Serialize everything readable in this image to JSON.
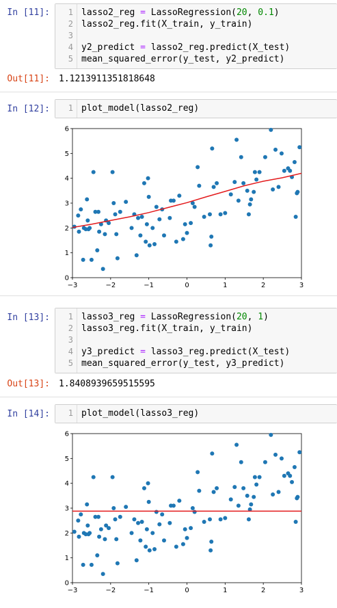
{
  "cells": [
    {
      "in_prompt": "In  [11]:",
      "lines": [
        [
          [
            "lasso2_reg "
          ],
          [
            "=",
            "op"
          ],
          [
            " LassoRegression("
          ],
          [
            "20",
            "num"
          ],
          [
            ", "
          ],
          [
            "0.1",
            "num"
          ],
          [
            ")"
          ]
        ],
        [
          [
            "lasso2_reg.fit(X_train, y_train)"
          ]
        ],
        [
          [
            ""
          ]
        ],
        [
          [
            "y2_predict "
          ],
          [
            "=",
            "op"
          ],
          [
            " lasso2_reg.predict(X_test)"
          ]
        ],
        [
          [
            "mean_squared_error(y_test, y2_predict)"
          ]
        ]
      ],
      "out_prompt": "Out[11]:",
      "out_text": "1.1213911351818648"
    },
    {
      "in_prompt": "In  [12]:",
      "lines": [
        [
          [
            "plot_model(lasso2_reg)"
          ]
        ]
      ]
    },
    {
      "in_prompt": "In  [13]:",
      "lines": [
        [
          [
            "lasso3_reg "
          ],
          [
            "=",
            "op"
          ],
          [
            " LassoRegression("
          ],
          [
            "20",
            "num"
          ],
          [
            ", "
          ],
          [
            "1",
            "num"
          ],
          [
            ")"
          ]
        ],
        [
          [
            "lasso3_reg.fit(X_train, y_train)"
          ]
        ],
        [
          [
            ""
          ]
        ],
        [
          [
            "y3_predict "
          ],
          [
            "=",
            "op"
          ],
          [
            " lasso3_reg.predict(X_test)"
          ]
        ],
        [
          [
            "mean_squared_error(y_test, y3_predict)"
          ]
        ]
      ],
      "out_prompt": "Out[13]:",
      "out_text": "1.8408939659515595"
    },
    {
      "in_prompt": "In  [14]:",
      "lines": [
        [
          [
            "plot_model(lasso3_reg)"
          ]
        ]
      ]
    }
  ],
  "colors": {
    "points": "#1f77b4",
    "fit_line": "#e31a1c",
    "in_prompt": "#303f9f",
    "out_prompt": "#d84315"
  },
  "chart_data": [
    {
      "type": "scatter",
      "xlim": [
        -3,
        3
      ],
      "ylim": [
        0,
        6
      ],
      "xticks": [
        "-3",
        "-2",
        "-1",
        "0",
        "1",
        "2",
        "3"
      ],
      "yticks": [
        "0",
        "1",
        "2",
        "3",
        "4",
        "5",
        "6"
      ],
      "grid": false,
      "series": [
        {
          "kind": "points",
          "points": [
            [
              -2.95,
              2.05
            ],
            [
              -2.85,
              2.5
            ],
            [
              -2.83,
              1.85
            ],
            [
              -2.78,
              2.75
            ],
            [
              -2.72,
              0.72
            ],
            [
              -2.7,
              2.0
            ],
            [
              -2.65,
              1.95
            ],
            [
              -2.62,
              3.15
            ],
            [
              -2.6,
              2.3
            ],
            [
              -2.58,
              1.95
            ],
            [
              -2.55,
              2.0
            ],
            [
              -2.5,
              0.72
            ],
            [
              -2.45,
              4.25
            ],
            [
              -2.4,
              2.65
            ],
            [
              -2.35,
              1.1
            ],
            [
              -2.32,
              2.65
            ],
            [
              -2.3,
              1.85
            ],
            [
              -2.25,
              2.15
            ],
            [
              -2.2,
              0.35
            ],
            [
              -2.15,
              1.75
            ],
            [
              -2.12,
              2.3
            ],
            [
              -2.05,
              2.2
            ],
            [
              -1.95,
              4.25
            ],
            [
              -1.92,
              3.0
            ],
            [
              -1.88,
              2.55
            ],
            [
              -1.85,
              1.75
            ],
            [
              -1.82,
              0.78
            ],
            [
              -1.75,
              2.65
            ],
            [
              -1.6,
              3.05
            ],
            [
              -1.45,
              2.0
            ],
            [
              -1.38,
              2.55
            ],
            [
              -1.32,
              0.9
            ],
            [
              -1.28,
              2.4
            ],
            [
              -1.22,
              1.7
            ],
            [
              -1.18,
              2.45
            ],
            [
              -1.12,
              3.8
            ],
            [
              -1.08,
              1.45
            ],
            [
              -1.05,
              2.15
            ],
            [
              -1.02,
              4.0
            ],
            [
              -1.0,
              3.25
            ],
            [
              -0.98,
              1.3
            ],
            [
              -0.9,
              2.0
            ],
            [
              -0.85,
              1.35
            ],
            [
              -0.8,
              2.85
            ],
            [
              -0.72,
              2.35
            ],
            [
              -0.65,
              2.75
            ],
            [
              -0.6,
              1.7
            ],
            [
              -0.45,
              2.4
            ],
            [
              -0.42,
              3.1
            ],
            [
              -0.35,
              3.1
            ],
            [
              -0.28,
              1.45
            ],
            [
              -0.2,
              3.3
            ],
            [
              -0.1,
              1.55
            ],
            [
              -0.05,
              2.15
            ],
            [
              0.0,
              1.8
            ],
            [
              0.1,
              2.2
            ],
            [
              0.15,
              3.0
            ],
            [
              0.2,
              2.85
            ],
            [
              0.28,
              4.45
            ],
            [
              0.32,
              3.7
            ],
            [
              0.45,
              2.45
            ],
            [
              0.6,
              2.55
            ],
            [
              0.62,
              1.3
            ],
            [
              0.64,
              1.65
            ],
            [
              0.66,
              5.2
            ],
            [
              0.7,
              3.65
            ],
            [
              0.78,
              3.8
            ],
            [
              0.88,
              2.55
            ],
            [
              1.0,
              2.6
            ],
            [
              1.15,
              3.35
            ],
            [
              1.25,
              3.85
            ],
            [
              1.3,
              5.55
            ],
            [
              1.35,
              3.1
            ],
            [
              1.42,
              4.85
            ],
            [
              1.48,
              3.8
            ],
            [
              1.58,
              3.5
            ],
            [
              1.62,
              2.55
            ],
            [
              1.65,
              2.95
            ],
            [
              1.68,
              3.15
            ],
            [
              1.75,
              3.45
            ],
            [
              1.78,
              4.25
            ],
            [
              1.82,
              3.95
            ],
            [
              1.9,
              4.25
            ],
            [
              2.05,
              4.85
            ],
            [
              2.2,
              5.95
            ],
            [
              2.25,
              3.55
            ],
            [
              2.32,
              5.15
            ],
            [
              2.4,
              3.65
            ],
            [
              2.48,
              5.0
            ],
            [
              2.55,
              4.3
            ],
            [
              2.65,
              4.4
            ],
            [
              2.7,
              4.3
            ],
            [
              2.75,
              4.05
            ],
            [
              2.82,
              4.65
            ],
            [
              2.85,
              2.45
            ],
            [
              2.88,
              3.4
            ],
            [
              2.9,
              3.45
            ],
            [
              2.95,
              5.25
            ]
          ]
        },
        {
          "kind": "line",
          "points": [
            [
              -3,
              2.02
            ],
            [
              -2.5,
              2.15
            ],
            [
              -2.0,
              2.3
            ],
            [
              -1.5,
              2.45
            ],
            [
              -1.0,
              2.62
            ],
            [
              -0.5,
              2.82
            ],
            [
              0.0,
              3.02
            ],
            [
              0.5,
              3.25
            ],
            [
              1.0,
              3.47
            ],
            [
              1.5,
              3.7
            ],
            [
              2.0,
              3.88
            ],
            [
              2.5,
              4.02
            ],
            [
              3.0,
              4.2
            ]
          ]
        }
      ]
    },
    {
      "type": "scatter",
      "xlim": [
        -3,
        3
      ],
      "ylim": [
        0,
        6
      ],
      "xticks": [
        "-3",
        "-2",
        "-1",
        "0",
        "1",
        "2",
        "3"
      ],
      "yticks": [
        "0",
        "1",
        "2",
        "3",
        "4",
        "5",
        "6"
      ],
      "grid": false,
      "series": [
        {
          "kind": "points",
          "points": [
            [
              -2.95,
              2.05
            ],
            [
              -2.85,
              2.5
            ],
            [
              -2.83,
              1.85
            ],
            [
              -2.78,
              2.75
            ],
            [
              -2.72,
              0.72
            ],
            [
              -2.7,
              2.0
            ],
            [
              -2.65,
              1.95
            ],
            [
              -2.62,
              3.15
            ],
            [
              -2.6,
              2.3
            ],
            [
              -2.58,
              1.95
            ],
            [
              -2.55,
              2.0
            ],
            [
              -2.5,
              0.72
            ],
            [
              -2.45,
              4.25
            ],
            [
              -2.4,
              2.65
            ],
            [
              -2.35,
              1.1
            ],
            [
              -2.32,
              2.65
            ],
            [
              -2.3,
              1.85
            ],
            [
              -2.25,
              2.15
            ],
            [
              -2.2,
              0.35
            ],
            [
              -2.15,
              1.75
            ],
            [
              -2.12,
              2.3
            ],
            [
              -2.05,
              2.2
            ],
            [
              -1.95,
              4.25
            ],
            [
              -1.92,
              3.0
            ],
            [
              -1.88,
              2.55
            ],
            [
              -1.85,
              1.75
            ],
            [
              -1.82,
              0.78
            ],
            [
              -1.75,
              2.65
            ],
            [
              -1.6,
              3.05
            ],
            [
              -1.45,
              2.0
            ],
            [
              -1.38,
              2.55
            ],
            [
              -1.32,
              0.9
            ],
            [
              -1.28,
              2.4
            ],
            [
              -1.22,
              1.7
            ],
            [
              -1.18,
              2.45
            ],
            [
              -1.12,
              3.8
            ],
            [
              -1.08,
              1.45
            ],
            [
              -1.05,
              2.15
            ],
            [
              -1.02,
              4.0
            ],
            [
              -1.0,
              3.25
            ],
            [
              -0.98,
              1.3
            ],
            [
              -0.9,
              2.0
            ],
            [
              -0.85,
              1.35
            ],
            [
              -0.8,
              2.85
            ],
            [
              -0.72,
              2.35
            ],
            [
              -0.65,
              2.75
            ],
            [
              -0.6,
              1.7
            ],
            [
              -0.45,
              2.4
            ],
            [
              -0.42,
              3.1
            ],
            [
              -0.35,
              3.1
            ],
            [
              -0.28,
              1.45
            ],
            [
              -0.2,
              3.3
            ],
            [
              -0.1,
              1.55
            ],
            [
              -0.05,
              2.15
            ],
            [
              0.0,
              1.8
            ],
            [
              0.1,
              2.2
            ],
            [
              0.15,
              3.0
            ],
            [
              0.2,
              2.85
            ],
            [
              0.28,
              4.45
            ],
            [
              0.32,
              3.7
            ],
            [
              0.45,
              2.45
            ],
            [
              0.6,
              2.55
            ],
            [
              0.62,
              1.3
            ],
            [
              0.64,
              1.65
            ],
            [
              0.66,
              5.2
            ],
            [
              0.7,
              3.65
            ],
            [
              0.78,
              3.8
            ],
            [
              0.88,
              2.55
            ],
            [
              1.0,
              2.6
            ],
            [
              1.15,
              3.35
            ],
            [
              1.25,
              3.85
            ],
            [
              1.3,
              5.55
            ],
            [
              1.35,
              3.1
            ],
            [
              1.42,
              4.85
            ],
            [
              1.48,
              3.8
            ],
            [
              1.58,
              3.5
            ],
            [
              1.62,
              2.55
            ],
            [
              1.65,
              2.95
            ],
            [
              1.68,
              3.15
            ],
            [
              1.75,
              3.45
            ],
            [
              1.78,
              4.25
            ],
            [
              1.82,
              3.95
            ],
            [
              1.9,
              4.25
            ],
            [
              2.05,
              4.85
            ],
            [
              2.2,
              5.95
            ],
            [
              2.25,
              3.55
            ],
            [
              2.32,
              5.15
            ],
            [
              2.4,
              3.65
            ],
            [
              2.48,
              5.0
            ],
            [
              2.55,
              4.3
            ],
            [
              2.65,
              4.4
            ],
            [
              2.7,
              4.3
            ],
            [
              2.75,
              4.05
            ],
            [
              2.82,
              4.65
            ],
            [
              2.85,
              2.45
            ],
            [
              2.88,
              3.4
            ],
            [
              2.9,
              3.45
            ],
            [
              2.95,
              5.25
            ]
          ]
        },
        {
          "kind": "line",
          "points": [
            [
              -3,
              2.88
            ],
            [
              3,
              2.88
            ]
          ]
        }
      ]
    }
  ]
}
